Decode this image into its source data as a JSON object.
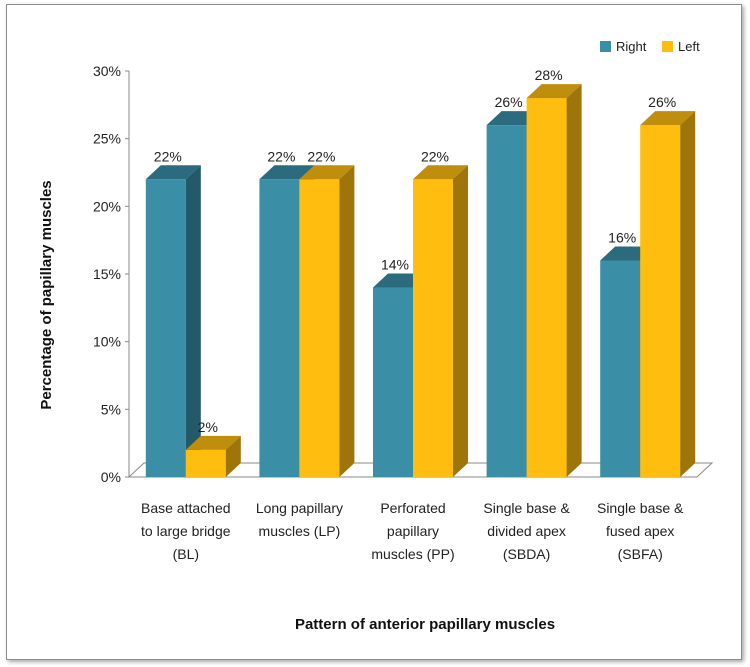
{
  "chart_data": {
    "type": "bar",
    "variant": "3d-clustered",
    "title": "",
    "xlabel": "Pattern of anterior papillary muscles",
    "ylabel": "Percentage of papillary muscles",
    "ylim": [
      0,
      30
    ],
    "yticks": [
      "0%",
      "5%",
      "10%",
      "15%",
      "20%",
      "25%",
      "30%"
    ],
    "ytick_values": [
      0,
      5,
      10,
      15,
      20,
      25,
      30
    ],
    "legend_position": "top-right",
    "categories": [
      [
        "Base attached",
        "to large bridge",
        "(BL)"
      ],
      [
        "Long papillary",
        "muscles (LP)"
      ],
      [
        "Perforated",
        "papillary",
        "muscles (PP)"
      ],
      [
        "Single base &",
        "divided apex",
        "(SBDA)"
      ],
      [
        "Single base &",
        "fused apex",
        "(SBFA)"
      ]
    ],
    "series": [
      {
        "name": "Right",
        "color": "#3a8fa6",
        "values": [
          22,
          22,
          14,
          26,
          16
        ],
        "labels": [
          "22%",
          "22%",
          "14%",
          "26%",
          "16%"
        ]
      },
      {
        "name": "Left",
        "color": "#ffbd10",
        "values": [
          2,
          22,
          22,
          28,
          26
        ],
        "labels": [
          "2%",
          "22%",
          "22%",
          "28%",
          "26%"
        ]
      }
    ]
  }
}
